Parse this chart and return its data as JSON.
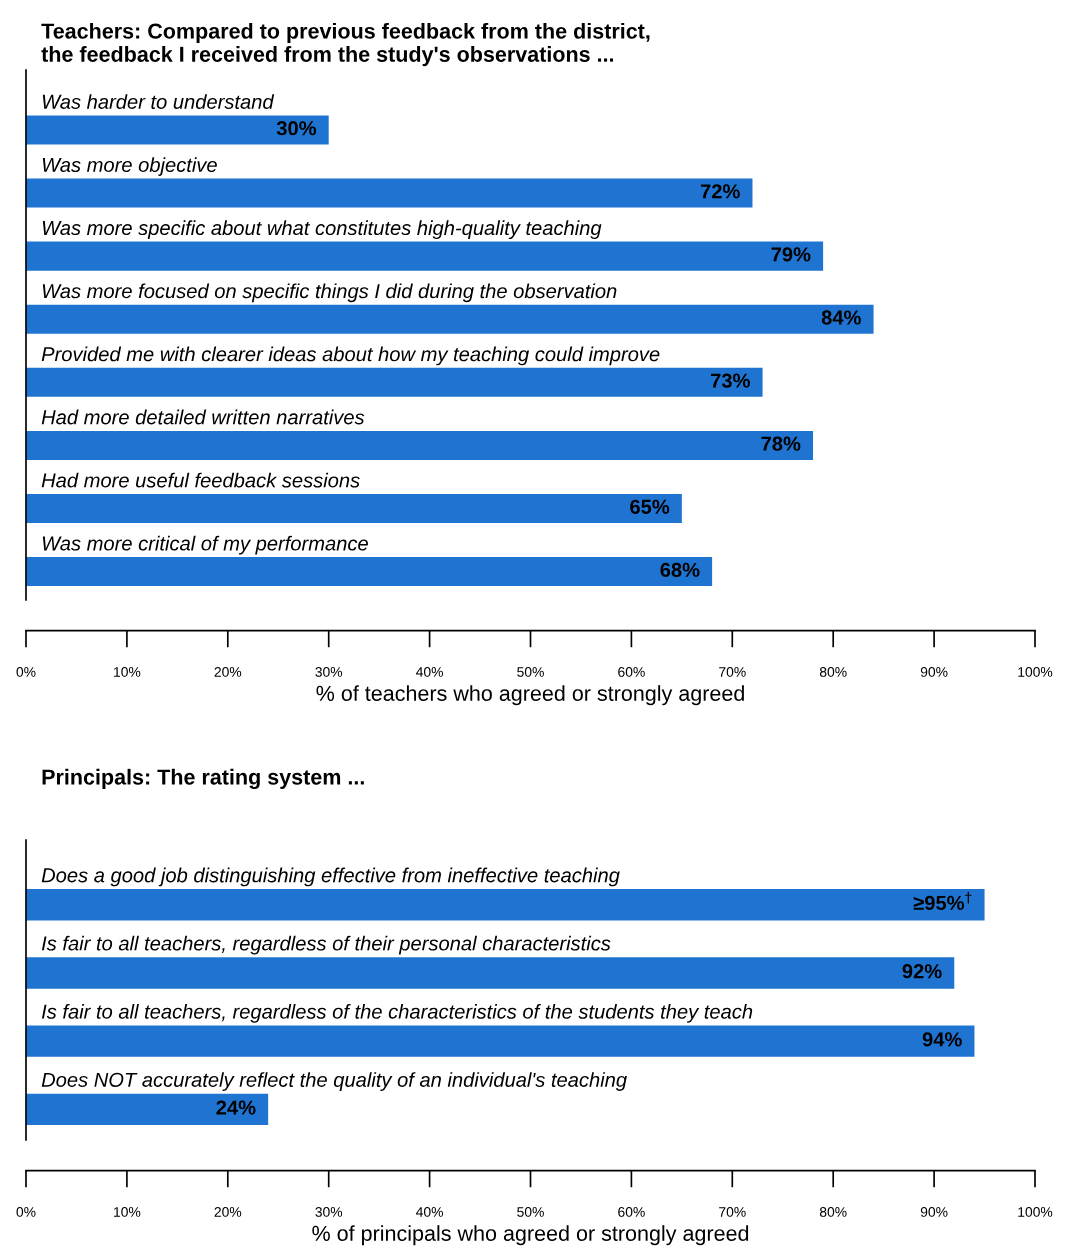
{
  "chart_data": [
    {
      "type": "bar",
      "orientation": "horizontal",
      "title": "Teachers: Compared to previous feedback from the district,\nthe feedback I received from the study's observations ...",
      "xlabel": "% of teachers who agreed or strongly agreed",
      "categories": [
        "Was harder to understand",
        "Was more objective",
        "Was more specific about what constitutes high-quality teaching",
        "Was more focused on specific things I did during the observation",
        "Provided me with clearer ideas about how my teaching could improve",
        "Had more detailed written narratives",
        "Had more useful feedback sessions",
        "Was more critical of my performance"
      ],
      "values": [
        30,
        72,
        79,
        84,
        73,
        78,
        65,
        68
      ],
      "value_labels": [
        "30%",
        "72%",
        "79%",
        "84%",
        "73%",
        "78%",
        "65%",
        "68%"
      ],
      "color": "#1f74d2",
      "xlim": [
        0,
        100
      ],
      "xticks": [
        {
          "value": 0,
          "label": "0%"
        },
        {
          "value": 10,
          "label": "10%"
        },
        {
          "value": 20,
          "label": "20%"
        },
        {
          "value": 30,
          "label": "30%"
        },
        {
          "value": 40,
          "label": "40%"
        },
        {
          "value": 50,
          "label": "50%"
        },
        {
          "value": 60,
          "label": "60%"
        },
        {
          "value": 70,
          "label": "70%"
        },
        {
          "value": 80,
          "label": "80%"
        },
        {
          "value": 90,
          "label": "90%"
        },
        {
          "value": 100,
          "label": "100%"
        }
      ],
      "grid": false,
      "legend": false
    },
    {
      "type": "bar",
      "orientation": "horizontal",
      "title": "Principals: The rating system ...",
      "xlabel": "% of principals who agreed or strongly agreed",
      "categories": [
        "Does a good job distinguishing effective from ineffective teaching",
        "Is fair to all teachers, regardless of their personal characteristics",
        "Is fair to all teachers, regardless of the characteristics of the students they teach",
        "Does NOT accurately reflect the quality of an individual's teaching"
      ],
      "values": [
        95,
        92,
        94,
        24
      ],
      "value_labels": [
        "≥95%$^{†}$",
        "92%",
        "94%",
        "24%"
      ],
      "color": "#1f74d2",
      "xlim": [
        0,
        100
      ],
      "xticks": [
        {
          "value": 0,
          "label": "0%"
        },
        {
          "value": 10,
          "label": "10%"
        },
        {
          "value": 20,
          "label": "20%"
        },
        {
          "value": 30,
          "label": "30%"
        },
        {
          "value": 40,
          "label": "40%"
        },
        {
          "value": 50,
          "label": "50%"
        },
        {
          "value": 60,
          "label": "60%"
        },
        {
          "value": 70,
          "label": "70%"
        },
        {
          "value": 80,
          "label": "80%"
        },
        {
          "value": 90,
          "label": "90%"
        },
        {
          "value": 100,
          "label": "100%"
        }
      ],
      "grid": false,
      "legend": false
    }
  ]
}
